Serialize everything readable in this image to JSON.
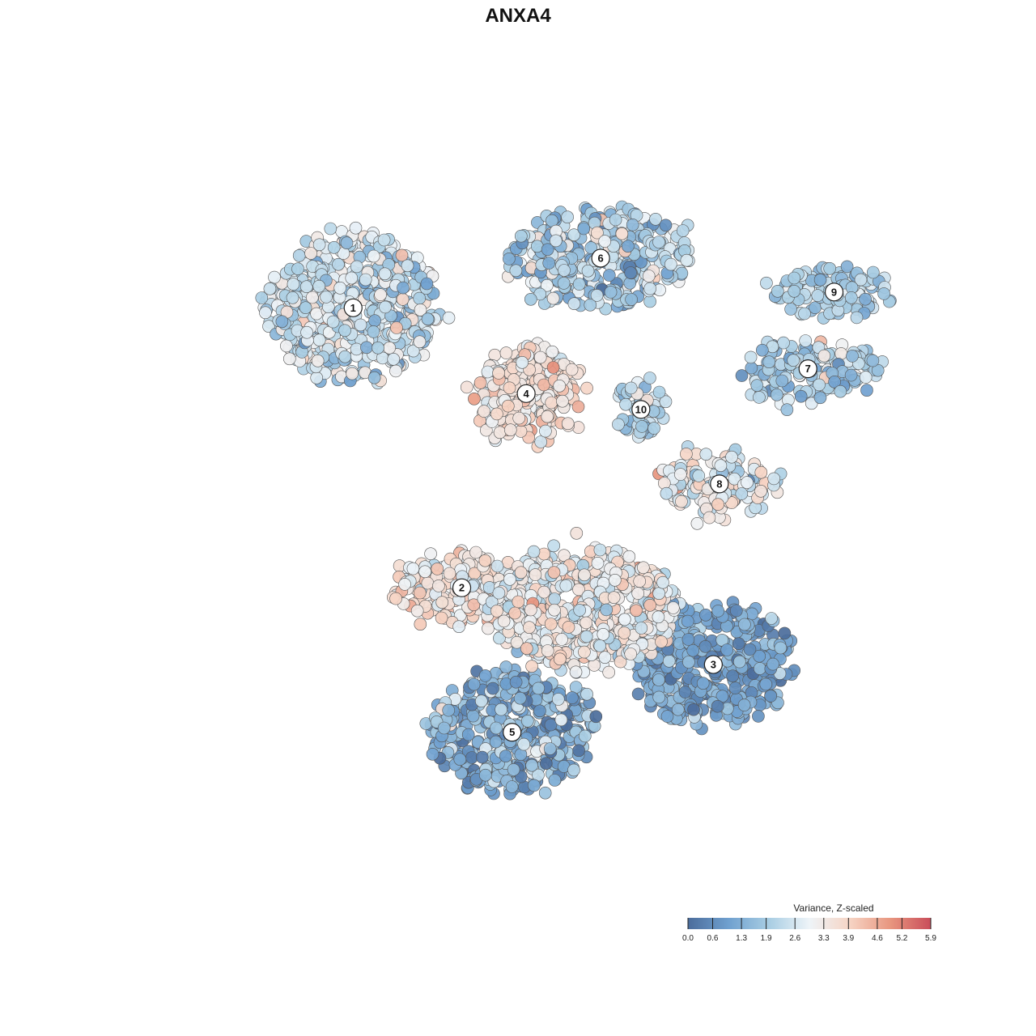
{
  "chart_data": {
    "type": "scatter",
    "title": "ANXA4",
    "legend": {
      "title": "Variance, Z-scaled",
      "ticks": [
        "0.0",
        "0.6",
        "1.3",
        "1.9",
        "2.6",
        "3.3",
        "3.9",
        "4.6",
        "5.2",
        "5.9"
      ],
      "range": [
        0.0,
        5.9
      ],
      "colors": [
        "#4b6c9b",
        "#6fa0cf",
        "#a8cde3",
        "#eef4f8",
        "#f6d4c4",
        "#e8967f",
        "#c94d5a"
      ],
      "placement": "bottom-right"
    },
    "clusters": [
      {
        "label": "1",
        "x": -9.4,
        "y": 9.3,
        "rx": 4.3,
        "ry": 3.2,
        "n": 520,
        "mean": 2.5,
        "sd": 0.7
      },
      {
        "label": "2",
        "x": -4.0,
        "y": -3.1,
        "rx": 3.3,
        "ry": 1.5,
        "n": 200,
        "mean": 3.4,
        "sd": 0.6
      },
      {
        "label": "3",
        "x": 8.5,
        "y": -6.5,
        "rx": 4.0,
        "ry": 2.7,
        "n": 420,
        "mean": 1.1,
        "sd": 0.5
      },
      {
        "label": "4",
        "x": -0.8,
        "y": 5.5,
        "rx": 2.6,
        "ry": 2.1,
        "n": 240,
        "mean": 3.5,
        "sd": 0.5
      },
      {
        "label": "5",
        "x": -1.5,
        "y": -9.5,
        "rx": 4.1,
        "ry": 2.6,
        "n": 420,
        "mean": 1.3,
        "sd": 0.8
      },
      {
        "label": "6",
        "x": 2.9,
        "y": 11.5,
        "rx": 4.5,
        "ry": 2.1,
        "n": 340,
        "mean": 2.0,
        "sd": 0.7
      },
      {
        "label": "7",
        "x": 13.2,
        "y": 6.6,
        "rx": 3.4,
        "ry": 1.2,
        "n": 160,
        "mean": 2.0,
        "sd": 0.6
      },
      {
        "label": "8",
        "x": 8.8,
        "y": 1.5,
        "rx": 2.8,
        "ry": 1.4,
        "n": 150,
        "mean": 2.9,
        "sd": 0.8
      },
      {
        "label": "9",
        "x": 14.5,
        "y": 10.0,
        "rx": 3.0,
        "ry": 1.0,
        "n": 120,
        "mean": 1.9,
        "sd": 0.5
      },
      {
        "label": "10",
        "x": 4.9,
        "y": 4.8,
        "rx": 1.1,
        "ry": 1.3,
        "n": 60,
        "mean": 2.1,
        "sd": 0.6
      },
      {
        "label": "",
        "x": 2.0,
        "y": -4.0,
        "rx": 4.6,
        "ry": 2.6,
        "n": 600,
        "mean": 3.1,
        "sd": 0.6
      }
    ],
    "xlim": [
      -18.5,
      18.5
    ],
    "ylim": [
      -16.5,
      21.5
    ],
    "grid": false
  }
}
